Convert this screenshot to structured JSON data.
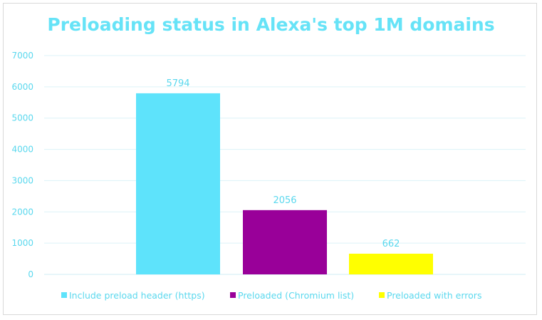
{
  "chart_data": {
    "type": "bar",
    "title": "Preloading status in Alexa's top 1M domains",
    "xlabel": "",
    "ylabel": "",
    "ylim": [
      0,
      7000
    ],
    "yticks": [
      0,
      1000,
      2000,
      3000,
      4000,
      5000,
      6000,
      7000
    ],
    "grid": true,
    "legend_position": "bottom",
    "series": [
      {
        "name": "Include preload header (https)",
        "value": 5794,
        "color": "#5ee3fb"
      },
      {
        "name": "Preloaded (Chromium list)",
        "value": 2056,
        "color": "#990099"
      },
      {
        "name": "Preloaded with errors",
        "value": 662,
        "color": "#ffff00"
      }
    ],
    "colors": {
      "text": "#5ad8ee",
      "grid": "#dcf3f8",
      "axis": "#cfeef5",
      "title": "#66e3f7"
    }
  }
}
